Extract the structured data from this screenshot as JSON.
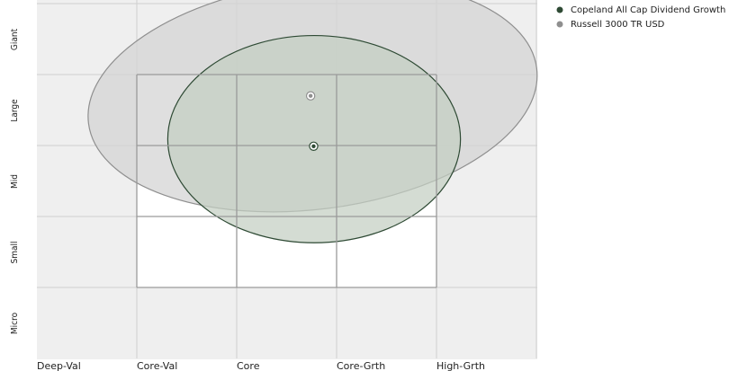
{
  "chart_data": {
    "type": "scatter",
    "title": "",
    "x_tick_labels": [
      "Deep-Val",
      "Core-Val",
      "Core",
      "Core-Grth",
      "High-Grth"
    ],
    "y_tick_labels": [
      "Micro",
      "Small",
      "Mid",
      "Large",
      "Giant"
    ],
    "xlim": [
      0,
      5
    ],
    "ylim": [
      0,
      5
    ],
    "grid": true,
    "legend_position": "top-right",
    "series": [
      {
        "name": "Copeland All Cap Dividend Growth",
        "color": "#2e4a34",
        "fill": "#c4cec2",
        "centroid": {
          "x": 2.77,
          "y": 2.99
        },
        "ellipse": {
          "x_range": [
            1.31,
            4.24
          ],
          "y_range": [
            1.63,
            4.55
          ]
        }
      },
      {
        "name": "Russell 3000 TR USD",
        "color": "#8f8f8f",
        "fill": "#d4d4d4",
        "centroid": {
          "x": 2.74,
          "y": 3.7
        },
        "ellipse": {
          "x_range": [
            0.5,
            5.02
          ],
          "y_range": [
            2.1,
            5.3
          ]
        }
      }
    ],
    "style_box": {
      "x_range": [
        1,
        4
      ],
      "y_range": [
        1,
        4
      ]
    }
  }
}
